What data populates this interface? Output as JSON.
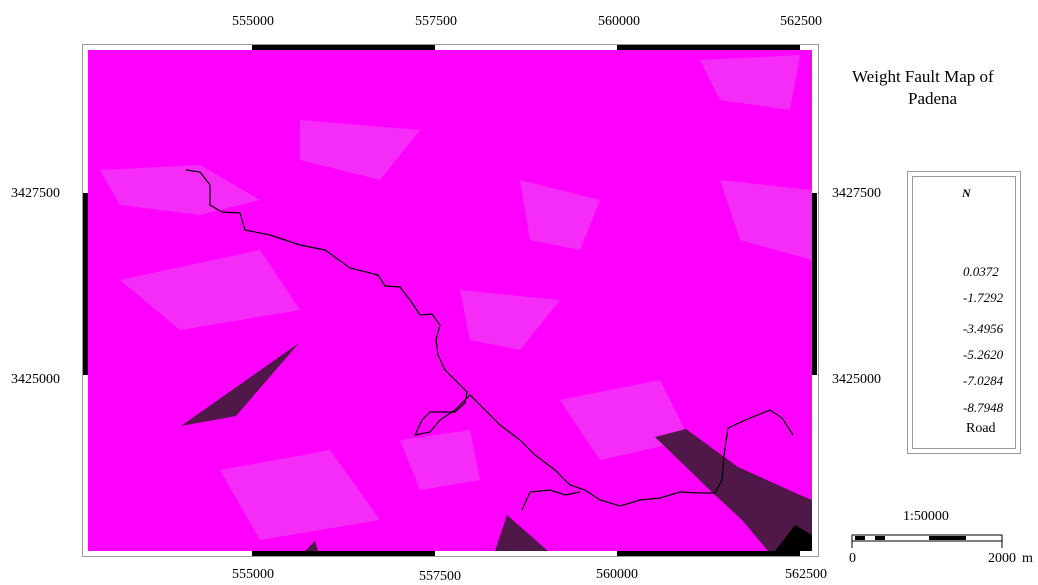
{
  "map": {
    "title_line1": "Weight Fault Map of",
    "title_line2": "Padena",
    "x_ticks": [
      "555000",
      "557500",
      "560000",
      "562500"
    ],
    "y_ticks": [
      "3427500",
      "3425000"
    ],
    "colors": {
      "background": "#ff00ff",
      "light_patch": "#f23af5",
      "dark_region": "#501848",
      "black_region": "#000000",
      "road": "#000000"
    }
  },
  "legend": {
    "north_label": "N",
    "ramp_colors": [
      "#ff00ff",
      "#2c0018",
      "#ee0000",
      "#e07000",
      "#e8e800",
      "#00ee00",
      "#00e0d0",
      "#0000ee"
    ],
    "class_labels": [
      "0.0372",
      "-1.7292",
      "-3.4956",
      "-5.2620",
      "-7.0284",
      "-8.7948"
    ],
    "road_label": "Road"
  },
  "scale": {
    "ratio": "1:50000",
    "start_label": "0",
    "end_label": "2000",
    "unit": "m"
  }
}
